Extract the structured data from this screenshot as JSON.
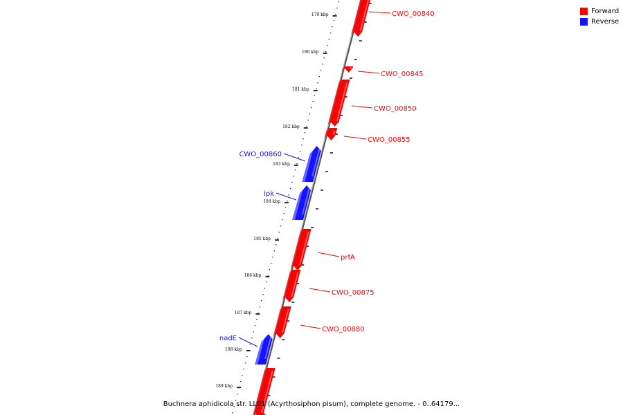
{
  "legend": [
    {
      "label": "Forward",
      "color": "#ff0000"
    },
    {
      "label": "Reverse",
      "color": "#1414ff"
    }
  ],
  "ticks": [
    "179 kbp",
    "180 kbp",
    "181 kbp",
    "182 kbp",
    "183 kbp",
    "184 kbp",
    "185 kbp",
    "186 kbp",
    "187 kbp",
    "188 kbp",
    "189 kbp"
  ],
  "genes": [
    {
      "label": "CWO_00840",
      "strand": "forward"
    },
    {
      "label": "CWO_00845",
      "strand": "forward"
    },
    {
      "label": "CWO_00850",
      "strand": "forward"
    },
    {
      "label": "CWO_00855",
      "strand": "forward"
    },
    {
      "label": "CWO_00860",
      "strand": "reverse"
    },
    {
      "label": "ipk",
      "strand": "reverse"
    },
    {
      "label": "prfA",
      "strand": "forward"
    },
    {
      "label": "CWO_00875",
      "strand": "forward"
    },
    {
      "label": "CWO_00880",
      "strand": "forward"
    },
    {
      "label": "nadE",
      "strand": "reverse"
    },
    {
      "label": "",
      "strand": "forward"
    }
  ],
  "caption": "Buchnera aphidicola str. LL01 (Acyrthosiphon pisum), complete genome. - 0..64179..."
}
